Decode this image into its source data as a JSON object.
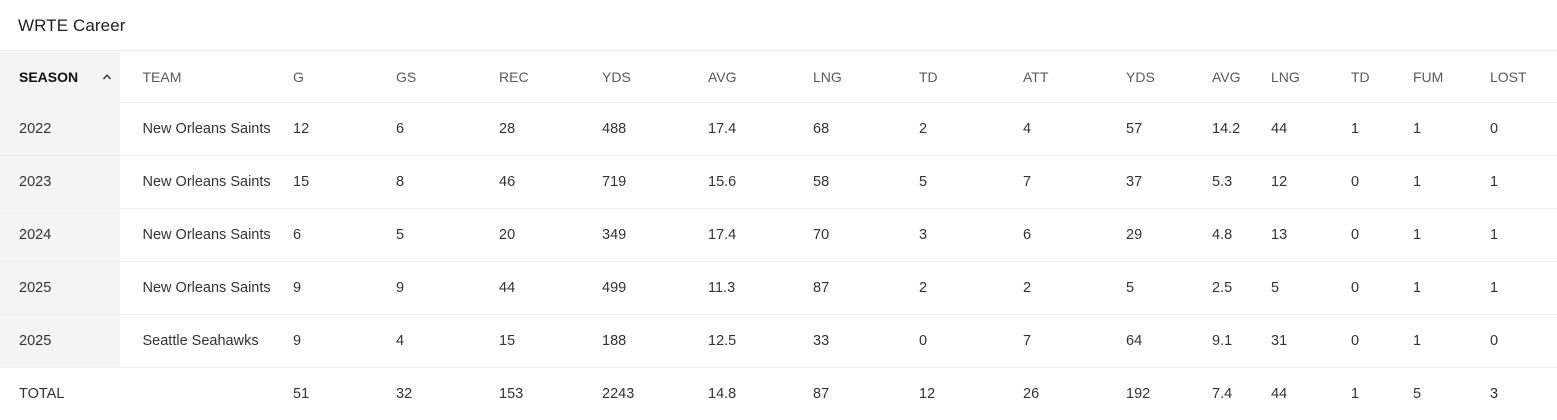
{
  "title": "WRTE Career",
  "columns": [
    "SEASON",
    "TEAM",
    "G",
    "GS",
    "REC",
    "YDS",
    "AVG",
    "LNG",
    "TD",
    "ATT",
    "YDS",
    "AVG",
    "LNG",
    "TD",
    "FUM",
    "LOST"
  ],
  "rows": [
    [
      "2022",
      "New Orleans Saints",
      "12",
      "6",
      "28",
      "488",
      "17.4",
      "68",
      "2",
      "4",
      "57",
      "14.2",
      "44",
      "1",
      "1",
      "0"
    ],
    [
      "2023",
      "New Orleans Saints",
      "15",
      "8",
      "46",
      "719",
      "15.6",
      "58",
      "5",
      "7",
      "37",
      "5.3",
      "12",
      "0",
      "1",
      "1"
    ],
    [
      "2024",
      "New Orleans Saints",
      "6",
      "5",
      "20",
      "349",
      "17.4",
      "70",
      "3",
      "6",
      "29",
      "4.8",
      "13",
      "0",
      "1",
      "1"
    ],
    [
      "2025",
      "New Orleans Saints",
      "9",
      "9",
      "44",
      "499",
      "11.3",
      "87",
      "2",
      "2",
      "5",
      "2.5",
      "5",
      "0",
      "1",
      "1"
    ],
    [
      "2025",
      "Seattle Seahawks",
      "9",
      "4",
      "15",
      "188",
      "12.5",
      "33",
      "0",
      "7",
      "64",
      "9.1",
      "31",
      "0",
      "1",
      "0"
    ]
  ],
  "total": [
    "TOTAL",
    "",
    "51",
    "32",
    "153",
    "2243",
    "14.8",
    "87",
    "12",
    "26",
    "192",
    "7.4",
    "44",
    "1",
    "5",
    "3"
  ],
  "sort": {
    "column": "SEASON",
    "direction": "ascending",
    "icon": "chevron-up-icon"
  }
}
